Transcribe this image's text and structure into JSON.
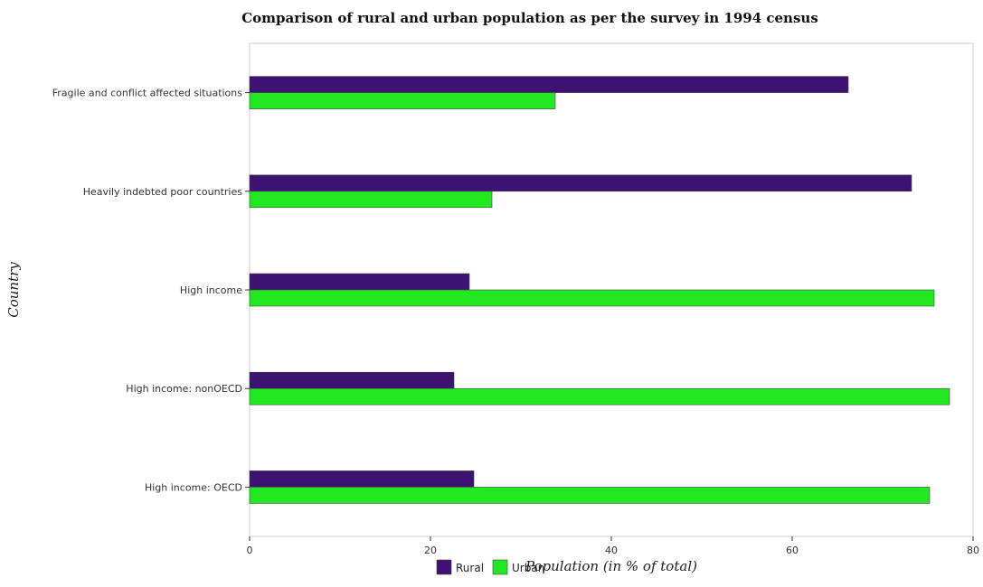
{
  "chart_data": {
    "type": "bar",
    "orientation": "horizontal",
    "title": "Comparison of rural and urban population as per the survey in 1994 census",
    "xlabel": "Population (in % of total)",
    "ylabel": "Country",
    "xlim": [
      0,
      80
    ],
    "xticks": [
      0,
      20,
      40,
      60,
      80
    ],
    "categories": [
      "Fragile and conflict affected situations",
      "Heavily indebted poor countries",
      "High income",
      "High income: nonOECD",
      "High income: OECD"
    ],
    "series": [
      {
        "name": "Rural",
        "color": "#3d1273",
        "values": [
          66.2,
          73.2,
          24.3,
          22.6,
          24.8
        ]
      },
      {
        "name": "Urban",
        "color": "#22e822",
        "values": [
          33.8,
          26.8,
          75.7,
          77.4,
          75.2
        ]
      }
    ],
    "legend": "bottom-center",
    "grid": false
  }
}
